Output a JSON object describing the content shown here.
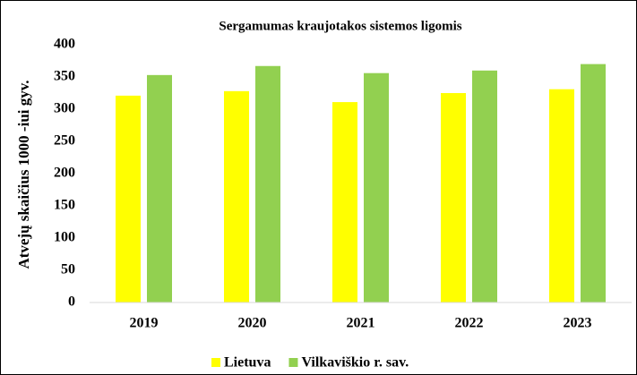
{
  "chart_data": {
    "type": "bar",
    "title": "Sergamumas kraujotakos sistemos ligomis",
    "y_label": "Atvejų skaičius 1000 -iui gyv.",
    "categories": [
      "2019",
      "2020",
      "2021",
      "2022",
      "2023"
    ],
    "series": [
      {
        "name": "Lietuva",
        "color": "#ffff00",
        "values": [
          321,
          328,
          311,
          325,
          331
        ]
      },
      {
        "name": "Vilkaviškio r. sav.",
        "color": "#92d050",
        "values": [
          353,
          367,
          356,
          360,
          370
        ]
      }
    ],
    "ylim": [
      0,
      400
    ],
    "yticks": [
      0,
      50,
      100,
      150,
      200,
      250,
      300,
      350,
      400
    ],
    "grid": false,
    "legend": "bottom"
  }
}
